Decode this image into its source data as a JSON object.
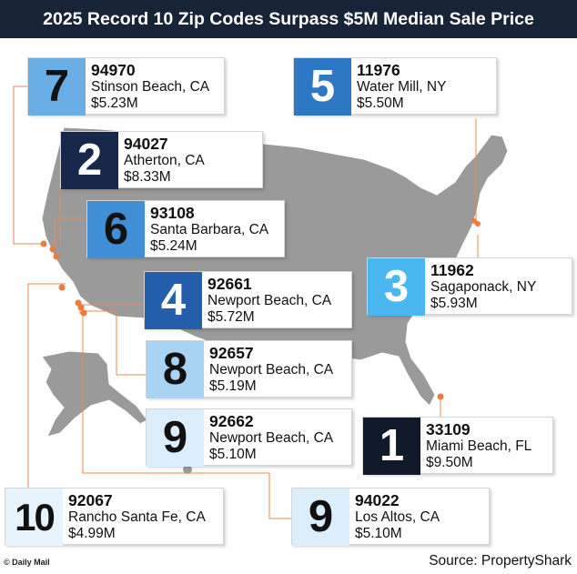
{
  "title": "2025 Record 10 Zip Codes Surpass $5M Median Sale Price",
  "source": "Source: PropertyShark",
  "logo": "© Daily Mail",
  "colors": {
    "header_bg": "#172337",
    "map_fill": "#9a9a9a",
    "map_border": "#ffffff",
    "marker": "#ef7a3e",
    "leader": "#e88a4f"
  },
  "cards": [
    {
      "rank": "7",
      "zip": "94970",
      "city": "Stinson Beach, CA",
      "price": "$5.23M",
      "color": "#6aaee6",
      "text": "#111111"
    },
    {
      "rank": "5",
      "zip": "11976",
      "city": "Water Mill, NY",
      "price": "$5.50M",
      "color": "#2c78c4",
      "text": "#ffffff"
    },
    {
      "rank": "2",
      "zip": "94027",
      "city": "Atherton, CA",
      "price": "$8.33M",
      "color": "#16284a",
      "text": "#ffffff"
    },
    {
      "rank": "6",
      "zip": "93108",
      "city": "Santa Barbara, CA",
      "price": "$5.24M",
      "color": "#3f8fd6",
      "text": "#111111"
    },
    {
      "rank": "3",
      "zip": "11962",
      "city": "Sagaponack, NY",
      "price": "$5.93M",
      "color": "#49b7f0",
      "text": "#ffffff"
    },
    {
      "rank": "4",
      "zip": "92661",
      "city": "Newport Beach, CA",
      "price": "$5.72M",
      "color": "#245fae",
      "text": "#ffffff"
    },
    {
      "rank": "8",
      "zip": "92657",
      "city": "Newport Beach, CA",
      "price": "$5.19M",
      "color": "#a9d3f3",
      "text": "#111111"
    },
    {
      "rank": "9",
      "zip": "92662",
      "city": "Newport Beach, CA",
      "price": "$5.10M",
      "color": "#dbeefc",
      "text": "#111111"
    },
    {
      "rank": "1",
      "zip": "33109",
      "city": "Miami Beach, FL",
      "price": "$9.50M",
      "color": "#101a2b",
      "text": "#ffffff"
    },
    {
      "rank": "10",
      "zip": "92067",
      "city": "Rancho Santa Fe, CA",
      "price": "$4.99M",
      "color": "#e8f4fd",
      "text": "#111111"
    },
    {
      "rank": "9",
      "zip": "94022",
      "city": "Los Altos, CA",
      "price": "$5.10M",
      "color": "#dbeefc",
      "text": "#111111"
    }
  ]
}
